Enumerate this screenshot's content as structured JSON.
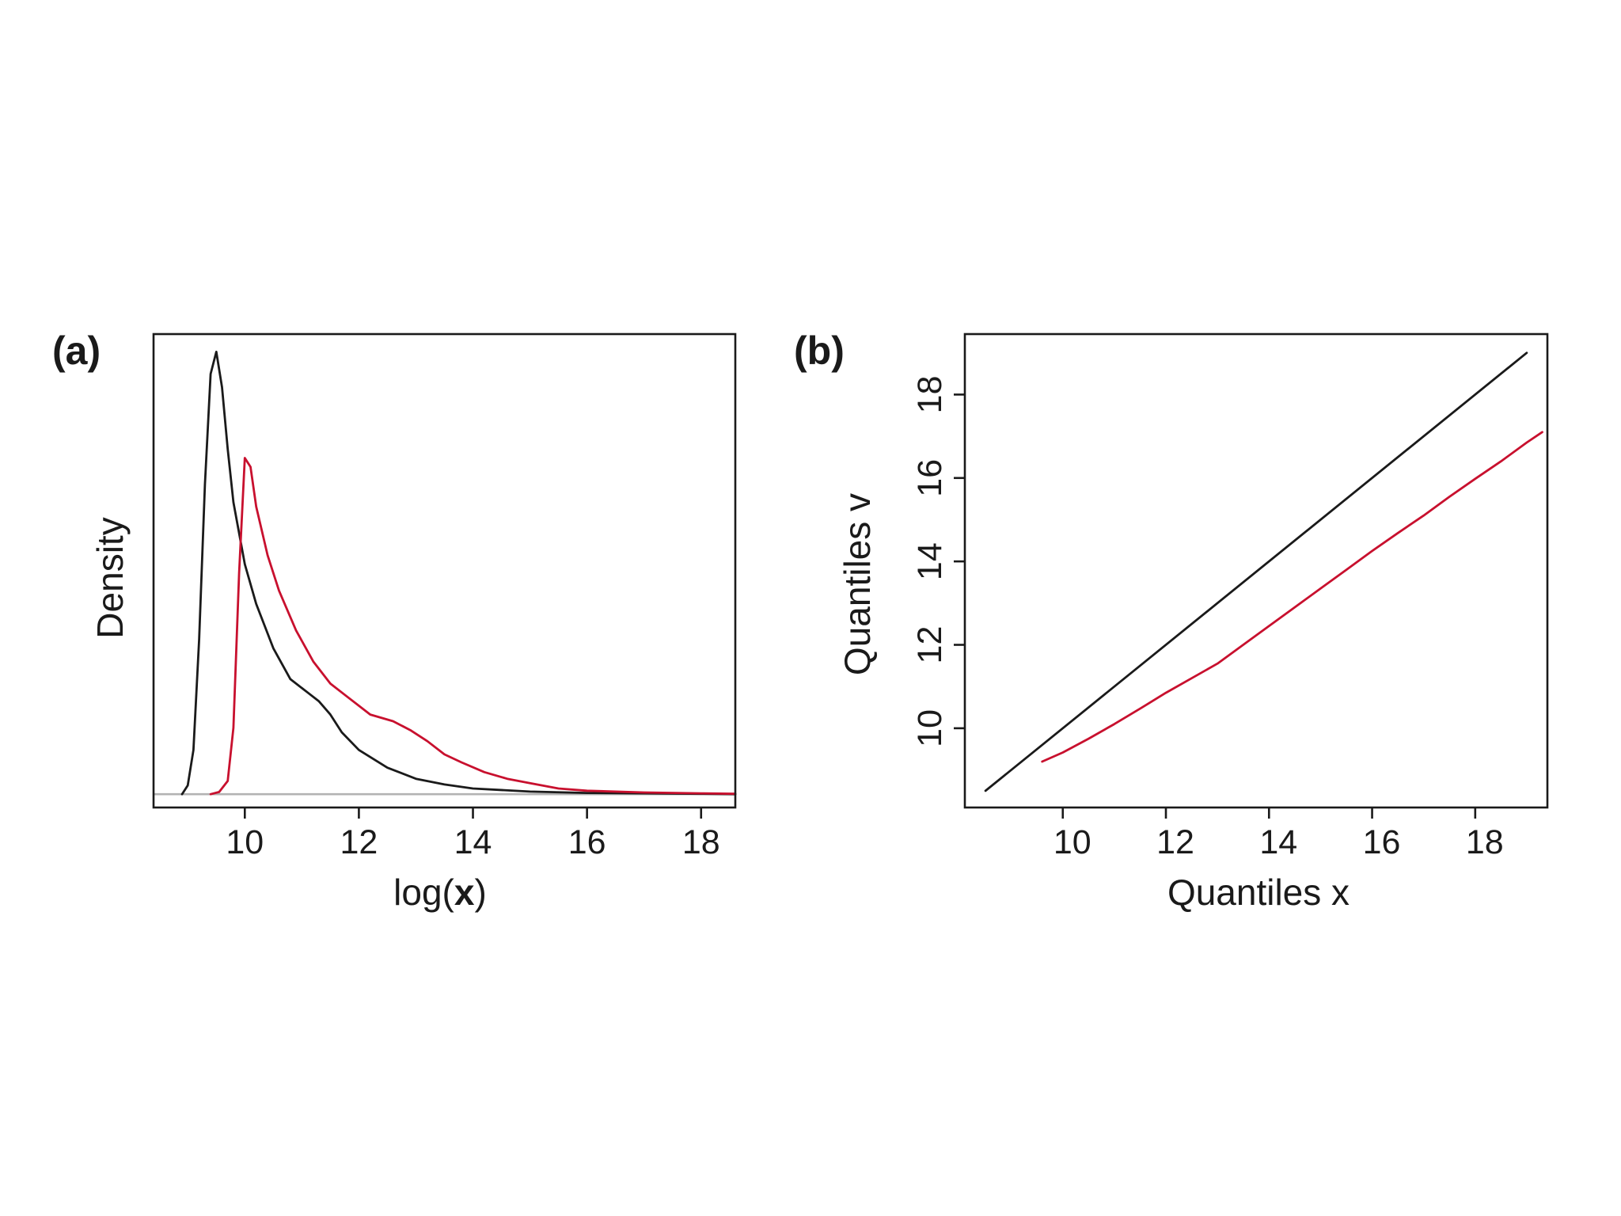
{
  "colors": {
    "black_series": "#1a1a1a",
    "red_series": "#c8102e",
    "baseline": "#b3b3b3",
    "background": "#ffffff"
  },
  "chart_data": [
    {
      "panel_label": "(a)",
      "type": "line",
      "title": "",
      "xlabel_prefix": "log(",
      "xlabel_bold": "x",
      "xlabel_suffix": ")",
      "ylabel": "Density",
      "xlim": [
        8.4,
        18.6
      ],
      "ylim": [
        -0.03,
        1.04
      ],
      "xticks": [
        10,
        12,
        14,
        16,
        18
      ],
      "yticks": [],
      "grid": false,
      "baseline": 0,
      "series": [
        {
          "color": "#1a1a1a",
          "x": [
            8.9,
            9.0,
            9.1,
            9.2,
            9.3,
            9.4,
            9.5,
            9.6,
            9.7,
            9.8,
            10.0,
            10.2,
            10.5,
            10.8,
            11.1,
            11.3,
            11.5,
            11.7,
            12.0,
            12.5,
            13.0,
            13.5,
            14.0,
            15.0,
            16.0,
            17.0,
            18.0,
            18.6
          ],
          "y": [
            0.0,
            0.02,
            0.1,
            0.35,
            0.7,
            0.95,
            1.0,
            0.92,
            0.78,
            0.66,
            0.52,
            0.43,
            0.33,
            0.26,
            0.23,
            0.21,
            0.18,
            0.14,
            0.1,
            0.06,
            0.035,
            0.022,
            0.013,
            0.006,
            0.003,
            0.002,
            0.001,
            0.0
          ]
        },
        {
          "color": "#c8102e",
          "x": [
            9.4,
            9.55,
            9.7,
            9.8,
            9.9,
            10.0,
            10.1,
            10.2,
            10.4,
            10.6,
            10.9,
            11.2,
            11.5,
            11.8,
            12.2,
            12.6,
            12.9,
            13.2,
            13.5,
            13.8,
            14.2,
            14.6,
            15.0,
            15.5,
            16.0,
            17.0,
            18.0,
            18.6
          ],
          "y": [
            0.0,
            0.005,
            0.03,
            0.15,
            0.5,
            0.76,
            0.74,
            0.65,
            0.54,
            0.46,
            0.37,
            0.3,
            0.25,
            0.22,
            0.18,
            0.165,
            0.145,
            0.12,
            0.09,
            0.072,
            0.05,
            0.035,
            0.025,
            0.013,
            0.008,
            0.004,
            0.002,
            0.001
          ]
        }
      ]
    },
    {
      "panel_label": "(b)",
      "type": "line",
      "title": "",
      "xlabel": "Quantiles x",
      "ylabel": "Quantiles v",
      "xlim": [
        8.1,
        19.4
      ],
      "ylim": [
        8.1,
        19.45
      ],
      "xticks": [
        10,
        12,
        14,
        16,
        18
      ],
      "yticks": [
        10,
        12,
        14,
        16,
        18
      ],
      "grid": false,
      "series": [
        {
          "color": "#1a1a1a",
          "x": [
            8.5,
            19.0
          ],
          "y": [
            8.5,
            19.0
          ]
        },
        {
          "color": "#c8102e",
          "x": [
            9.6,
            10.0,
            10.5,
            11.0,
            11.5,
            12.0,
            12.5,
            13.0,
            13.5,
            14.0,
            14.5,
            15.0,
            15.5,
            16.0,
            16.5,
            17.0,
            17.5,
            18.0,
            18.5,
            19.0,
            19.3
          ],
          "y": [
            9.2,
            9.42,
            9.75,
            10.1,
            10.47,
            10.85,
            11.2,
            11.55,
            12.0,
            12.45,
            12.9,
            13.35,
            13.8,
            14.25,
            14.68,
            15.1,
            15.55,
            15.98,
            16.4,
            16.85,
            17.1
          ]
        }
      ]
    }
  ]
}
